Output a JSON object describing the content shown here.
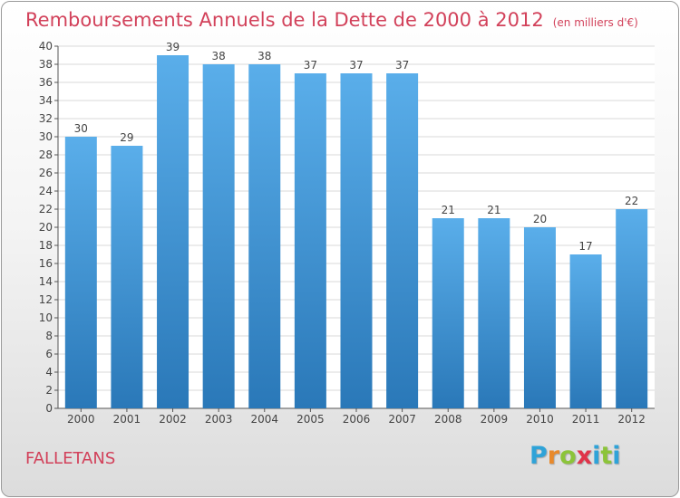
{
  "title": "Remboursements Annuels de la Dette de 2000 à 2012",
  "unit_note": "(en milliers d'€)",
  "place_name": "FALLETANS",
  "logo": {
    "letters": [
      "P",
      "r",
      "o",
      "x",
      "i",
      "t",
      "i"
    ],
    "colors": [
      "#2fa3d8",
      "#e8892b",
      "#8cc43a",
      "#e0344a",
      "#2fa3d8",
      "#8cc43a",
      "#2fa3d8"
    ]
  },
  "colors": {
    "title": "#d2415a",
    "bar_top": "#5aaeea",
    "bar_bottom": "#2a78b8",
    "grid": "#d9d9d9"
  },
  "chart_data": {
    "type": "bar",
    "categories": [
      "2000",
      "2001",
      "2002",
      "2003",
      "2004",
      "2005",
      "2006",
      "2007",
      "2008",
      "2009",
      "2010",
      "2011",
      "2012"
    ],
    "values": [
      30,
      29,
      39,
      38,
      38,
      37,
      37,
      37,
      21,
      21,
      20,
      17,
      22
    ],
    "ylim": [
      0,
      40
    ],
    "yticks": [
      0,
      2,
      4,
      6,
      8,
      10,
      12,
      14,
      16,
      18,
      20,
      22,
      24,
      26,
      28,
      30,
      32,
      34,
      36,
      38,
      40
    ],
    "grid": true,
    "data_labels": true
  }
}
